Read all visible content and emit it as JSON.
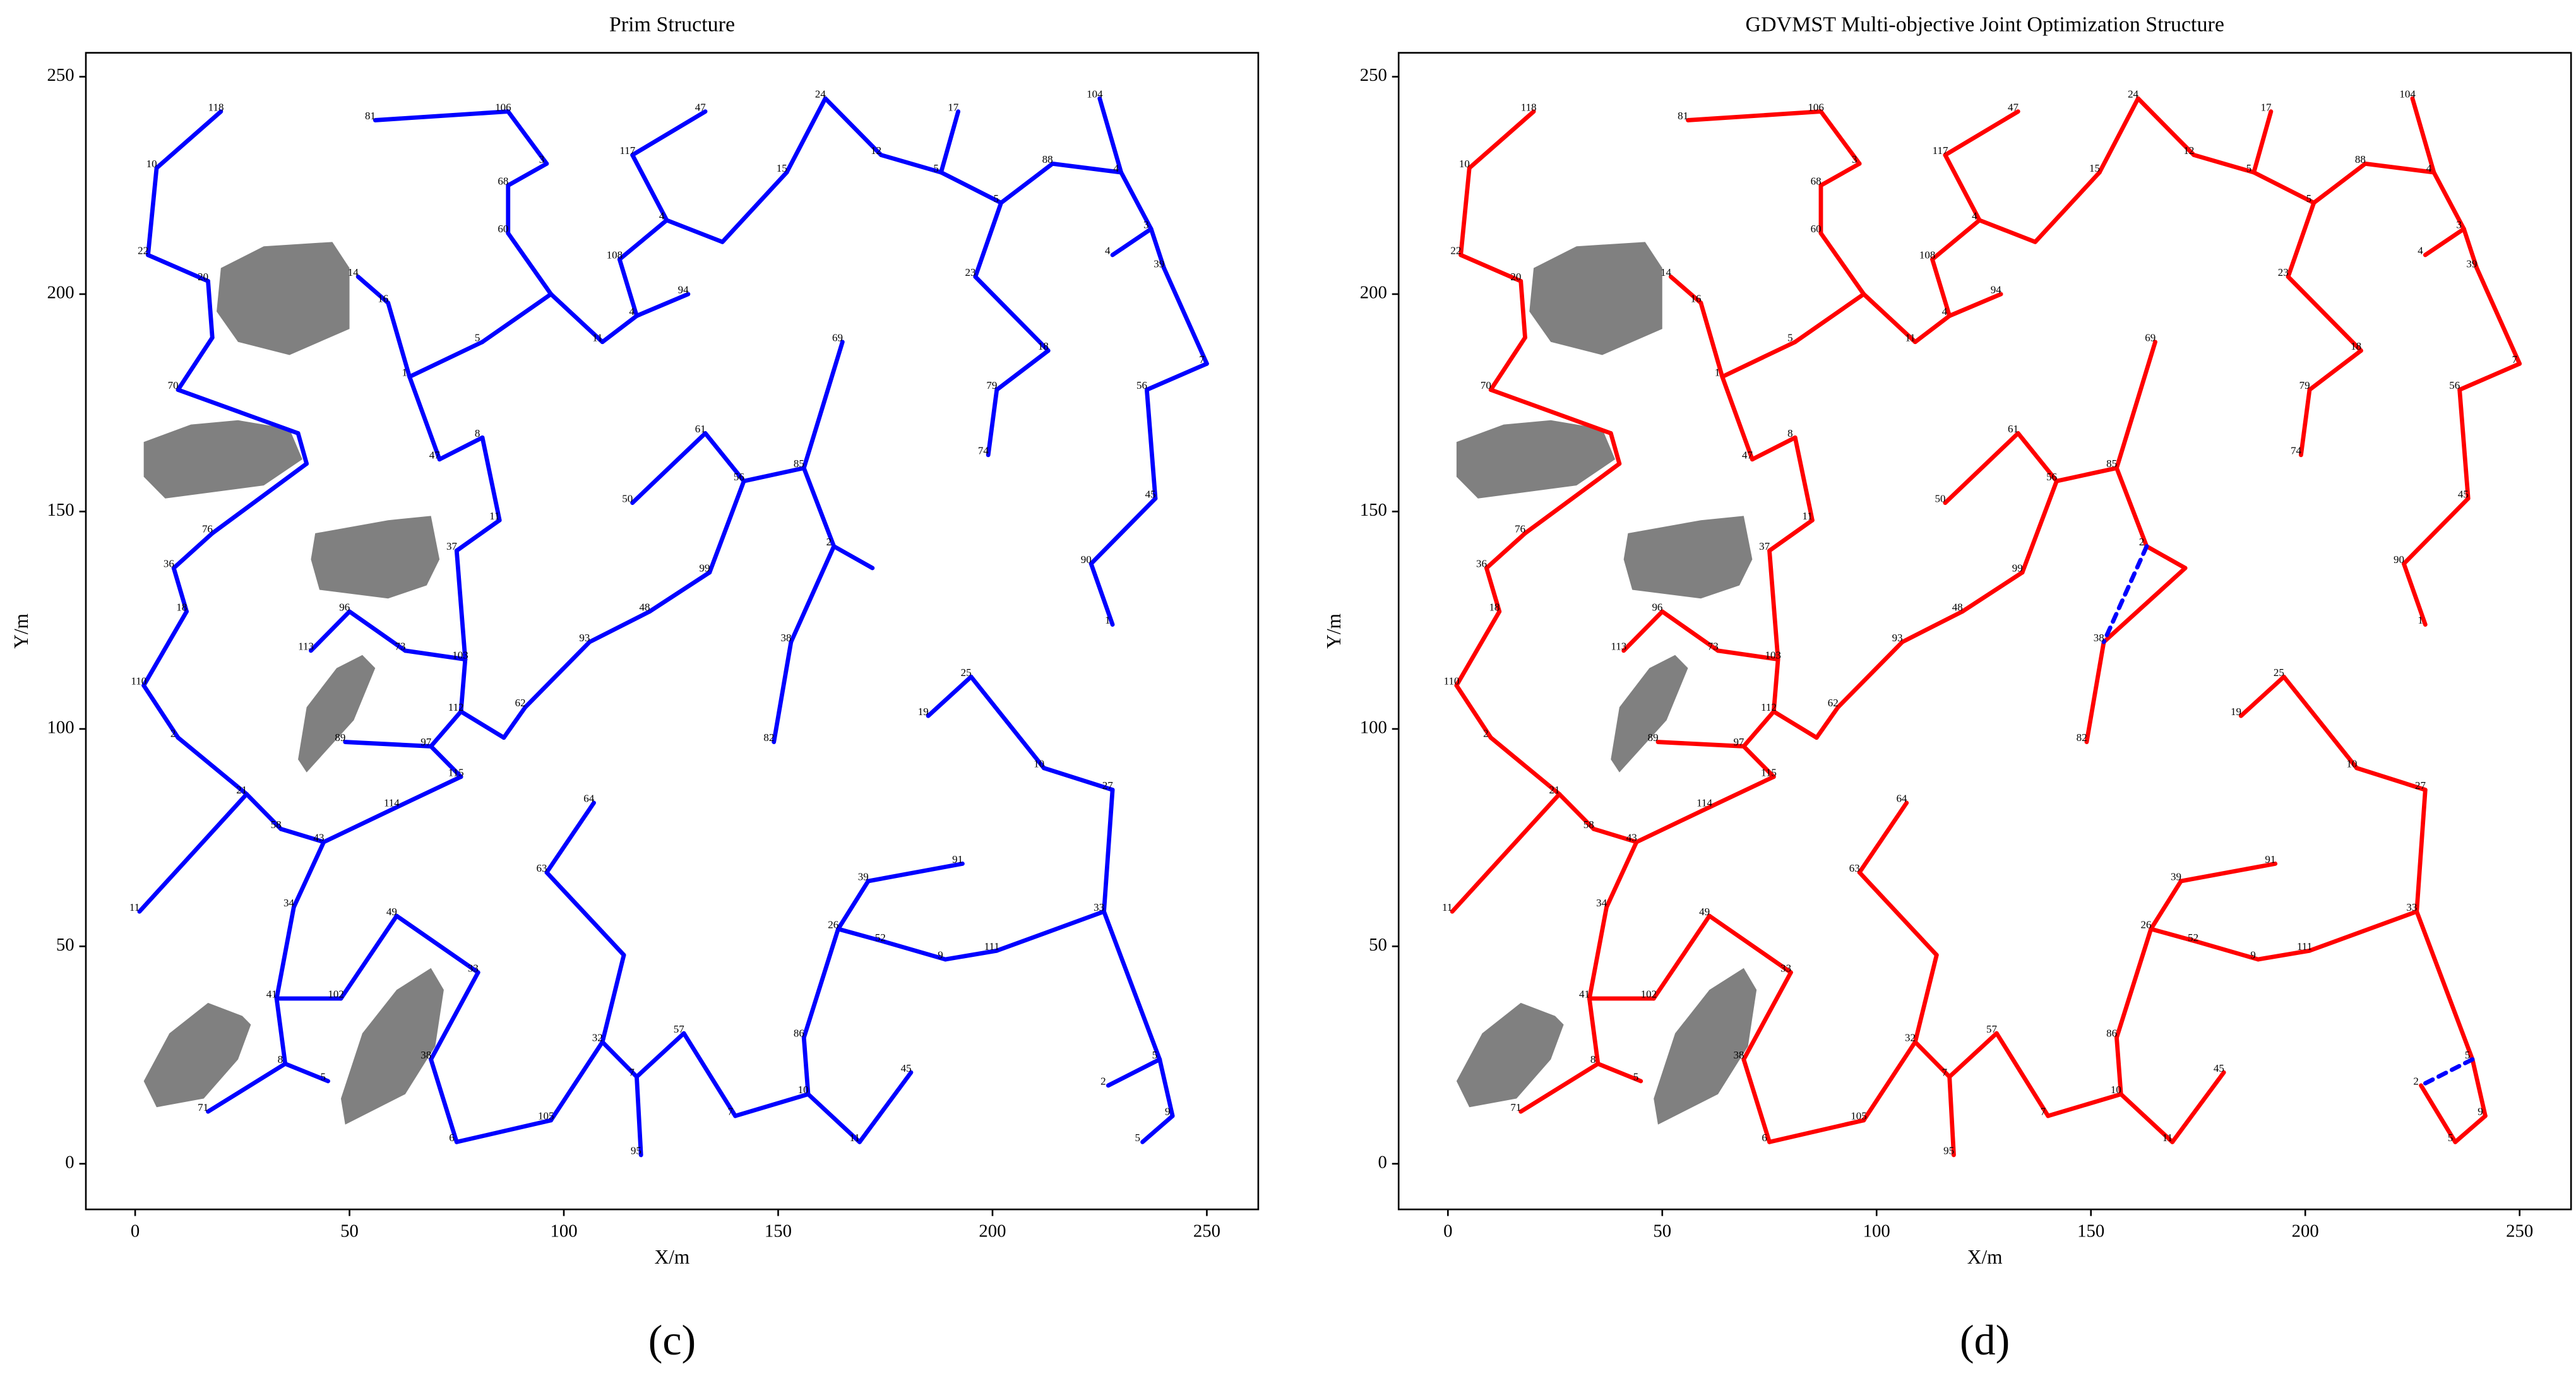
{
  "nodes": {
    "labels": [
      "118",
      "10",
      "22",
      "20",
      null,
      "70",
      null,
      null,
      "76",
      "36",
      "18",
      "110",
      "2",
      "21",
      "11",
      "58",
      "43",
      "114",
      "115",
      "97",
      "89",
      "112",
      null,
      "62",
      "93",
      "48",
      "99",
      "56",
      "61",
      "50",
      "85",
      "69",
      "2",
      null,
      "38",
      "82",
      "103",
      "73",
      "96",
      "113",
      "37",
      "11",
      "8",
      "47",
      "1",
      "14",
      "16",
      "5",
      null,
      "60",
      "68",
      "3",
      "106",
      "81",
      "11",
      "4",
      "94",
      "108",
      "4",
      "117",
      "47",
      null,
      "15",
      "24",
      "12",
      "17",
      "5",
      "5",
      "23",
      "18",
      "79",
      "74",
      "88",
      "104",
      "4",
      "3",
      "4",
      "39",
      "7",
      "56",
      "45",
      "90",
      "1",
      "19",
      "25",
      "10",
      "27",
      "33",
      "111",
      "9",
      "52",
      "26",
      "39",
      "91",
      "86",
      "10",
      "11",
      "45",
      "57",
      "7",
      "7",
      "95",
      "32",
      "105",
      null,
      "63",
      "64",
      "6",
      "38",
      "33",
      "49",
      "102",
      "41",
      "34",
      "8",
      "5",
      "71",
      "5",
      "9",
      "5",
      "2"
    ],
    "x": [
      20,
      5,
      3,
      17,
      18,
      10,
      38,
      40,
      18,
      9,
      12,
      2,
      10,
      26,
      1,
      34,
      44,
      61,
      76,
      69,
      49,
      76,
      86,
      91,
      106,
      120,
      134,
      142,
      133,
      116,
      156,
      165,
      163,
      172,
      153,
      149,
      77,
      63,
      50,
      41,
      75,
      85,
      81,
      71,
      64,
      52,
      59,
      81,
      97,
      87,
      87,
      96,
      87,
      56,
      109,
      117,
      129,
      113,
      124,
      116,
      133,
      137,
      152,
      161,
      174,
      192,
      188,
      202,
      196,
      213,
      201,
      199,
      214,
      225,
      230,
      237,
      228,
      240,
      250,
      236,
      238,
      223,
      228,
      185,
      195,
      212,
      228,
      226,
      201,
      189,
      175,
      164,
      171,
      193,
      156,
      157,
      169,
      181,
      128,
      140,
      117,
      118,
      109,
      97,
      114,
      96,
      107,
      75,
      69,
      80,
      61,
      48,
      33,
      37,
      35,
      45,
      17,
      239,
      242,
      235,
      227
    ],
    "y": [
      242,
      229,
      209,
      203,
      190,
      178,
      168,
      161,
      145,
      137,
      127,
      110,
      98,
      85,
      58,
      77,
      74,
      82,
      89,
      96,
      97,
      104,
      98,
      105,
      120,
      127,
      136,
      157,
      168,
      152,
      160,
      189,
      142,
      137,
      120,
      97,
      116,
      118,
      127,
      118,
      141,
      148,
      167,
      162,
      181,
      204,
      198,
      189,
      200,
      214,
      225,
      230,
      242,
      240,
      189,
      195,
      200,
      208,
      217,
      232,
      242,
      212,
      228,
      245,
      232,
      242,
      228,
      221,
      204,
      187,
      178,
      163,
      230,
      245,
      228,
      215,
      209,
      206,
      184,
      178,
      153,
      138,
      124,
      103,
      112,
      91,
      86,
      58,
      49,
      47,
      51,
      54,
      65,
      69,
      29,
      16,
      5,
      21,
      30,
      11,
      20,
      2,
      28,
      10,
      48,
      67,
      83,
      5,
      24,
      44,
      57,
      38,
      38,
      59,
      23,
      19,
      12,
      24,
      11,
      5,
      18
    ]
  },
  "obstacles": [
    {
      "x": [
        20,
        30,
        46,
        50,
        50,
        36,
        24,
        19
      ],
      "y": [
        206,
        211,
        212,
        206,
        192,
        186,
        189,
        196
      ]
    },
    {
      "x": [
        2,
        13,
        24,
        36,
        39,
        30,
        7,
        2
      ],
      "y": [
        166,
        170,
        171,
        169,
        162,
        156,
        153,
        158
      ]
    },
    {
      "x": [
        42,
        59,
        69,
        71,
        68,
        59,
        43,
        41
      ],
      "y": [
        145,
        148,
        149,
        139,
        133,
        130,
        132,
        139
      ]
    },
    {
      "x": [
        53,
        56,
        51,
        40,
        38,
        40,
        47
      ],
      "y": [
        117,
        114,
        102,
        90,
        93,
        105,
        114
      ]
    },
    {
      "x": [
        17,
        25,
        27,
        24,
        16,
        5,
        2,
        8
      ],
      "y": [
        37,
        34,
        32,
        24,
        15,
        13,
        19,
        30
      ]
    },
    {
      "x": [
        69,
        72,
        70,
        63,
        49,
        48,
        53,
        61
      ],
      "y": [
        45,
        40,
        27,
        16,
        9,
        15,
        30,
        40
      ]
    }
  ],
  "obstacle_color": "#808080",
  "chart_data": [
    {
      "type": "tree",
      "title": "Prim Structure",
      "x_label": "X/m",
      "y_label": "Y/m",
      "panel_label": "(c)",
      "xlim": [
        -11.5,
        262
      ],
      "ylim": [
        -10.5,
        255.5
      ],
      "xticks": [
        0,
        50,
        100,
        150,
        200,
        250
      ],
      "yticks": [
        0,
        50,
        100,
        150,
        200,
        250
      ],
      "edge_color": "#0000ff",
      "edges": [
        [
          0,
          1
        ],
        [
          1,
          2
        ],
        [
          2,
          3
        ],
        [
          3,
          4
        ],
        [
          4,
          5
        ],
        [
          5,
          6
        ],
        [
          6,
          7
        ],
        [
          7,
          8
        ],
        [
          8,
          9
        ],
        [
          9,
          10
        ],
        [
          10,
          11
        ],
        [
          11,
          12
        ],
        [
          12,
          13
        ],
        [
          13,
          14
        ],
        [
          13,
          15
        ],
        [
          15,
          16
        ],
        [
          16,
          17
        ],
        [
          17,
          18
        ],
        [
          18,
          19
        ],
        [
          19,
          20
        ],
        [
          19,
          21
        ],
        [
          21,
          22
        ],
        [
          22,
          23
        ],
        [
          23,
          24
        ],
        [
          24,
          25
        ],
        [
          25,
          26
        ],
        [
          26,
          27
        ],
        [
          27,
          28
        ],
        [
          28,
          29
        ],
        [
          27,
          30
        ],
        [
          30,
          31
        ],
        [
          30,
          32
        ],
        [
          32,
          33
        ],
        [
          32,
          34
        ],
        [
          34,
          35
        ],
        [
          21,
          36
        ],
        [
          36,
          37
        ],
        [
          37,
          38
        ],
        [
          38,
          39
        ],
        [
          36,
          40
        ],
        [
          40,
          41
        ],
        [
          41,
          42
        ],
        [
          42,
          43
        ],
        [
          43,
          44
        ],
        [
          44,
          46
        ],
        [
          46,
          45
        ],
        [
          44,
          47
        ],
        [
          47,
          48
        ],
        [
          48,
          49
        ],
        [
          49,
          50
        ],
        [
          50,
          51
        ],
        [
          51,
          52
        ],
        [
          52,
          53
        ],
        [
          48,
          54
        ],
        [
          54,
          55
        ],
        [
          55,
          56
        ],
        [
          55,
          57
        ],
        [
          57,
          58
        ],
        [
          58,
          59
        ],
        [
          59,
          60
        ],
        [
          58,
          61
        ],
        [
          61,
          62
        ],
        [
          62,
          63
        ],
        [
          63,
          64
        ],
        [
          64,
          66
        ],
        [
          66,
          65
        ],
        [
          66,
          67
        ],
        [
          67,
          68
        ],
        [
          68,
          69
        ],
        [
          69,
          70
        ],
        [
          70,
          71
        ],
        [
          67,
          72
        ],
        [
          72,
          74
        ],
        [
          74,
          73
        ],
        [
          74,
          75
        ],
        [
          75,
          76
        ],
        [
          75,
          77
        ],
        [
          77,
          78
        ],
        [
          78,
          79
        ],
        [
          79,
          80
        ],
        [
          80,
          81
        ],
        [
          81,
          82
        ],
        [
          16,
          113
        ],
        [
          113,
          112
        ],
        [
          112,
          111
        ],
        [
          111,
          110
        ],
        [
          110,
          109
        ],
        [
          109,
          108
        ],
        [
          108,
          107
        ],
        [
          107,
          103
        ],
        [
          103,
          102
        ],
        [
          102,
          104
        ],
        [
          104,
          105
        ],
        [
          105,
          106
        ],
        [
          102,
          100
        ],
        [
          100,
          101
        ],
        [
          100,
          98
        ],
        [
          98,
          99
        ],
        [
          99,
          95
        ],
        [
          95,
          94
        ],
        [
          95,
          96
        ],
        [
          96,
          97
        ],
        [
          94,
          91
        ],
        [
          91,
          92
        ],
        [
          92,
          93
        ],
        [
          91,
          90
        ],
        [
          90,
          89
        ],
        [
          89,
          88
        ],
        [
          88,
          87
        ],
        [
          87,
          86
        ],
        [
          86,
          85
        ],
        [
          85,
          84
        ],
        [
          84,
          83
        ],
        [
          87,
          117
        ],
        [
          117,
          118
        ],
        [
          118,
          119
        ],
        [
          117,
          120
        ],
        [
          112,
          114
        ],
        [
          114,
          115
        ],
        [
          114,
          116
        ]
      ]
    },
    {
      "type": "tree",
      "title": "GDVMST Multi-objective Joint Optimization Structure",
      "x_label": "X/m",
      "y_label": "Y/m",
      "panel_label": "(d)",
      "xlim": [
        -11.5,
        262
      ],
      "ylim": [
        -10.5,
        255.5
      ],
      "xticks": [
        0,
        50,
        100,
        150,
        200,
        250
      ],
      "yticks": [
        0,
        50,
        100,
        150,
        200,
        250
      ],
      "edge_color": "#ff0000",
      "dashed_color": "#0000ff",
      "edges": [
        [
          0,
          1
        ],
        [
          1,
          2
        ],
        [
          2,
          3
        ],
        [
          3,
          4
        ],
        [
          4,
          5
        ],
        [
          5,
          6
        ],
        [
          6,
          7
        ],
        [
          7,
          8
        ],
        [
          8,
          9
        ],
        [
          9,
          10
        ],
        [
          10,
          11
        ],
        [
          11,
          12
        ],
        [
          12,
          13
        ],
        [
          13,
          14
        ],
        [
          13,
          15
        ],
        [
          15,
          16
        ],
        [
          16,
          17
        ],
        [
          17,
          18
        ],
        [
          18,
          19
        ],
        [
          19,
          20
        ],
        [
          19,
          21
        ],
        [
          21,
          22
        ],
        [
          22,
          23
        ],
        [
          23,
          24
        ],
        [
          24,
          25
        ],
        [
          25,
          26
        ],
        [
          26,
          27
        ],
        [
          27,
          28
        ],
        [
          28,
          29
        ],
        [
          27,
          30
        ],
        [
          30,
          31
        ],
        [
          30,
          32
        ],
        [
          32,
          33
        ],
        [
          33,
          34
        ],
        [
          34,
          35
        ],
        [
          21,
          36
        ],
        [
          36,
          37
        ],
        [
          37,
          38
        ],
        [
          38,
          39
        ],
        [
          36,
          40
        ],
        [
          40,
          41
        ],
        [
          41,
          42
        ],
        [
          42,
          43
        ],
        [
          43,
          44
        ],
        [
          44,
          46
        ],
        [
          46,
          45
        ],
        [
          44,
          47
        ],
        [
          47,
          48
        ],
        [
          48,
          49
        ],
        [
          49,
          50
        ],
        [
          50,
          51
        ],
        [
          51,
          52
        ],
        [
          52,
          53
        ],
        [
          48,
          54
        ],
        [
          54,
          55
        ],
        [
          55,
          56
        ],
        [
          55,
          57
        ],
        [
          57,
          58
        ],
        [
          58,
          59
        ],
        [
          59,
          60
        ],
        [
          58,
          61
        ],
        [
          61,
          62
        ],
        [
          62,
          63
        ],
        [
          63,
          64
        ],
        [
          64,
          66
        ],
        [
          66,
          65
        ],
        [
          66,
          67
        ],
        [
          67,
          68
        ],
        [
          68,
          69
        ],
        [
          69,
          70
        ],
        [
          70,
          71
        ],
        [
          67,
          72
        ],
        [
          72,
          74
        ],
        [
          74,
          73
        ],
        [
          74,
          75
        ],
        [
          75,
          76
        ],
        [
          75,
          77
        ],
        [
          77,
          78
        ],
        [
          78,
          79
        ],
        [
          79,
          80
        ],
        [
          80,
          81
        ],
        [
          81,
          82
        ],
        [
          16,
          113
        ],
        [
          113,
          112
        ],
        [
          112,
          111
        ],
        [
          111,
          110
        ],
        [
          110,
          109
        ],
        [
          109,
          108
        ],
        [
          108,
          107
        ],
        [
          107,
          103
        ],
        [
          103,
          102
        ],
        [
          102,
          104
        ],
        [
          104,
          105
        ],
        [
          105,
          106
        ],
        [
          102,
          100
        ],
        [
          100,
          101
        ],
        [
          100,
          98
        ],
        [
          98,
          99
        ],
        [
          99,
          95
        ],
        [
          95,
          94
        ],
        [
          95,
          96
        ],
        [
          96,
          97
        ],
        [
          94,
          91
        ],
        [
          91,
          92
        ],
        [
          92,
          93
        ],
        [
          91,
          90
        ],
        [
          90,
          89
        ],
        [
          89,
          88
        ],
        [
          88,
          87
        ],
        [
          87,
          86
        ],
        [
          86,
          85
        ],
        [
          85,
          84
        ],
        [
          84,
          83
        ],
        [
          87,
          117
        ],
        [
          117,
          118
        ],
        [
          118,
          119
        ],
        [
          119,
          120
        ],
        [
          112,
          114
        ],
        [
          114,
          115
        ],
        [
          114,
          116
        ]
      ],
      "dashed_edges": [
        [
          32,
          34
        ],
        [
          117,
          120
        ]
      ]
    }
  ]
}
